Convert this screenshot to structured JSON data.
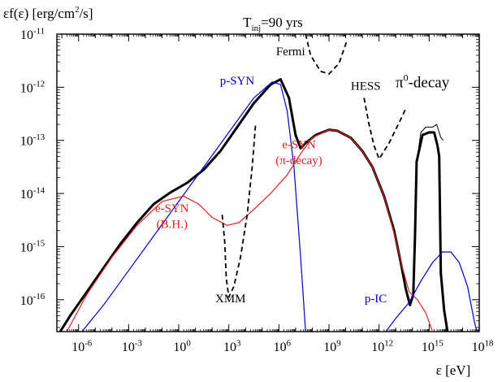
{
  "chart_data": {
    "type": "line",
    "title": "T_inj=90 yrs",
    "title_parts": {
      "base": "T",
      "sub": "inj",
      "rest": "=90 yrs"
    },
    "ylabel": "εf(ε) [erg/cm²/s]",
    "ylabel_parts": {
      "before": "εf(ε) [erg/cm",
      "sup": "2",
      "after": "/s]"
    },
    "xlabel": "ε [eV]",
    "x_scale": "log",
    "y_scale": "log",
    "xlim_log10": [
      -7.3,
      18
    ],
    "ylim_log10": [
      -16.6,
      -11
    ],
    "x_ticks": [
      {
        "exp": -6,
        "base": "10",
        "sup": "-6"
      },
      {
        "exp": -3,
        "base": "10",
        "sup": "-3"
      },
      {
        "exp": 0,
        "base": "10",
        "sup": "0"
      },
      {
        "exp": 3,
        "base": "10",
        "sup": "3"
      },
      {
        "exp": 6,
        "base": "10",
        "sup": "6"
      },
      {
        "exp": 9,
        "base": "10",
        "sup": "9"
      },
      {
        "exp": 12,
        "base": "10",
        "sup": "12"
      },
      {
        "exp": 15,
        "base": "10",
        "sup": "15"
      },
      {
        "exp": 18,
        "base": "10",
        "sup": "18"
      }
    ],
    "y_ticks": [
      {
        "exp": -11,
        "base": "10",
        "sup": "-11"
      },
      {
        "exp": -12,
        "base": "10",
        "sup": "-12"
      },
      {
        "exp": -13,
        "base": "10",
        "sup": "-13"
      },
      {
        "exp": -14,
        "base": "10",
        "sup": "-14"
      },
      {
        "exp": -15,
        "base": "10",
        "sup": "-15"
      },
      {
        "exp": -16,
        "base": "10",
        "sup": "-16"
      }
    ],
    "series": [
      {
        "color": "#000000",
        "width": 3,
        "dash": "",
        "points_log10": [
          [
            -7.1,
            -16.6
          ],
          [
            -6.5,
            -16.3
          ],
          [
            -5.5,
            -15.85
          ],
          [
            -4.5,
            -15.4
          ],
          [
            -3.5,
            -14.95
          ],
          [
            -2.5,
            -14.55
          ],
          [
            -1.5,
            -14.2
          ],
          [
            -0.5,
            -13.98
          ],
          [
            0.5,
            -13.8
          ],
          [
            1.5,
            -13.55
          ],
          [
            2.5,
            -13.2
          ],
          [
            3.5,
            -12.75
          ],
          [
            4.5,
            -12.3
          ],
          [
            5.5,
            -11.95
          ],
          [
            6.1,
            -11.85
          ],
          [
            6.6,
            -12.2
          ],
          [
            7.0,
            -12.9
          ],
          [
            7.3,
            -13.15
          ],
          [
            7.6,
            -13.05
          ],
          [
            8.2,
            -12.9
          ],
          [
            9.0,
            -12.8
          ],
          [
            9.5,
            -12.82
          ],
          [
            10.3,
            -12.95
          ],
          [
            11.0,
            -13.2
          ],
          [
            11.6,
            -13.5
          ],
          [
            12.3,
            -14.05
          ],
          [
            12.9,
            -14.7
          ],
          [
            13.3,
            -15.3
          ],
          [
            13.6,
            -15.8
          ],
          [
            13.85,
            -16.1
          ],
          [
            14.05,
            -15.9
          ],
          [
            14.15,
            -14.8
          ],
          [
            14.25,
            -13.4
          ],
          [
            14.6,
            -12.9
          ],
          [
            15.0,
            -12.85
          ],
          [
            15.3,
            -12.85
          ],
          [
            15.5,
            -13.1
          ],
          [
            15.6,
            -13.3
          ],
          [
            15.7,
            -15.5
          ],
          [
            15.9,
            -16.2
          ],
          [
            16.1,
            -16.6
          ]
        ]
      },
      {
        "color": "#000000",
        "width": 1,
        "dash": "",
        "points_log10": [
          [
            14.3,
            -13.3
          ],
          [
            14.5,
            -12.85
          ],
          [
            14.8,
            -12.75
          ],
          [
            15.2,
            -12.75
          ],
          [
            15.45,
            -12.7
          ],
          [
            15.7,
            -12.95
          ],
          [
            15.85,
            -13.0
          ]
        ]
      },
      {
        "color": "#0000cc",
        "width": 1.2,
        "dash": "",
        "points_log10": [
          [
            -5.8,
            -16.6
          ],
          [
            -4.5,
            -16.1
          ],
          [
            -3.0,
            -15.45
          ],
          [
            -1.5,
            -14.8
          ],
          [
            0,
            -14.15
          ],
          [
            1.5,
            -13.5
          ],
          [
            3.0,
            -12.85
          ],
          [
            4.5,
            -12.2
          ],
          [
            5.6,
            -11.9
          ],
          [
            6.1,
            -11.95
          ],
          [
            6.5,
            -12.45
          ],
          [
            6.9,
            -13.5
          ],
          [
            7.3,
            -15.2
          ],
          [
            7.6,
            -16.6
          ]
        ]
      },
      {
        "color": "#e02020",
        "width": 1.2,
        "dash": "",
        "points_log10": [
          [
            -6.7,
            -16.6
          ],
          [
            -5.5,
            -15.9
          ],
          [
            -4.0,
            -15.2
          ],
          [
            -2.5,
            -14.6
          ],
          [
            -1.0,
            -14.15
          ],
          [
            0.3,
            -14.05
          ],
          [
            1.2,
            -14.2
          ],
          [
            2.0,
            -14.45
          ],
          [
            2.9,
            -14.6
          ],
          [
            3.6,
            -14.55
          ],
          [
            4.5,
            -14.3
          ],
          [
            5.5,
            -14.0
          ],
          [
            6.5,
            -13.65
          ],
          [
            7.3,
            -13.25
          ],
          [
            8.0,
            -12.95
          ],
          [
            9.0,
            -12.8
          ],
          [
            9.5,
            -12.82
          ],
          [
            10.3,
            -12.95
          ],
          [
            11.0,
            -13.2
          ],
          [
            11.6,
            -13.5
          ],
          [
            12.3,
            -14.05
          ],
          [
            12.9,
            -14.75
          ],
          [
            13.4,
            -15.4
          ],
          [
            13.8,
            -15.85
          ],
          [
            14.3,
            -16.0
          ],
          [
            14.8,
            -16.25
          ],
          [
            15.2,
            -16.6
          ]
        ]
      },
      {
        "color": "#0000cc",
        "width": 1.2,
        "dash": "",
        "points_log10": [
          [
            12.4,
            -16.6
          ],
          [
            13.0,
            -16.35
          ],
          [
            13.8,
            -16.05
          ],
          [
            14.5,
            -15.65
          ],
          [
            15.2,
            -15.3
          ],
          [
            15.8,
            -15.1
          ],
          [
            16.3,
            -15.1
          ],
          [
            16.8,
            -15.3
          ],
          [
            17.3,
            -15.75
          ],
          [
            17.7,
            -16.4
          ],
          [
            17.85,
            -16.6
          ]
        ]
      },
      {
        "color": "#000000",
        "width": 1.8,
        "dash": "6,4",
        "points_log10": [
          [
            2.6,
            -14.4
          ],
          [
            2.75,
            -14.9
          ],
          [
            2.85,
            -15.6
          ],
          [
            3.0,
            -15.95
          ],
          [
            3.3,
            -15.75
          ],
          [
            3.7,
            -15.2
          ],
          [
            4.1,
            -14.4
          ],
          [
            4.4,
            -13.5
          ],
          [
            4.6,
            -12.7
          ]
        ]
      },
      {
        "color": "#000000",
        "width": 1.8,
        "dash": "6,4",
        "points_log10": [
          [
            7.6,
            -11
          ],
          [
            7.9,
            -11.4
          ],
          [
            8.5,
            -11.7
          ],
          [
            9.0,
            -11.75
          ],
          [
            9.6,
            -11.55
          ],
          [
            10.1,
            -11.1
          ]
        ]
      },
      {
        "color": "#000000",
        "width": 1.8,
        "dash": "6,4",
        "points_log10": [
          [
            11.1,
            -12.2
          ],
          [
            11.4,
            -12.7
          ],
          [
            11.7,
            -13.1
          ],
          [
            12.0,
            -13.35
          ],
          [
            12.6,
            -13.05
          ],
          [
            13.3,
            -12.6
          ],
          [
            13.6,
            -12.4
          ]
        ]
      }
    ],
    "annotations": [
      {
        "text": "p-SYN",
        "color": "#0000cc",
        "at": [
          3.5,
          -11.95
        ]
      },
      {
        "text": "Fermi",
        "color": "#000000",
        "at": [
          6.7,
          -11.4
        ]
      },
      {
        "text": "HESS",
        "color": "#000000",
        "at": [
          11.2,
          -12.05
        ]
      },
      {
        "text": "e-SYN",
        "color": "#e02020",
        "at": [
          7.2,
          -13.15
        ]
      },
      {
        "text": "(π-decay)",
        "color": "#e02020",
        "at": [
          7.2,
          -13.45
        ]
      },
      {
        "text": "e-SYN",
        "color": "#e02020",
        "at": [
          -0.4,
          -14.35
        ]
      },
      {
        "text": "(B.H.)",
        "color": "#e02020",
        "at": [
          -0.4,
          -14.65
        ]
      },
      {
        "text": "XMM",
        "color": "#000000",
        "at": [
          3.1,
          -16.05
        ]
      },
      {
        "text": "p-IC",
        "color": "#0000cc",
        "at": [
          11.8,
          -16.05
        ]
      }
    ],
    "pi_label": {
      "base": "π",
      "sup": "0",
      "rest": "-decay",
      "color": "#000000",
      "at": [
        14.6,
        -12.0
      ]
    }
  }
}
